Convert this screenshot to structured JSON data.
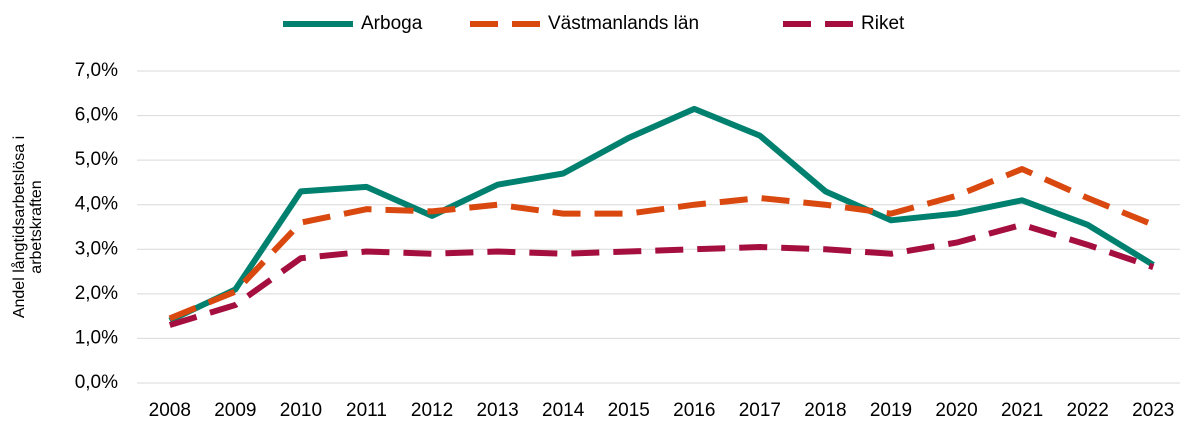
{
  "chart_data": {
    "type": "line",
    "ylabel": "Andel långtidsarbetslösa i arbetskraften",
    "categories": [
      "2008",
      "2009",
      "2010",
      "2011",
      "2012",
      "2013",
      "2014",
      "2015",
      "2016",
      "2017",
      "2018",
      "2019",
      "2020",
      "2021",
      "2022",
      "2023"
    ],
    "series": [
      {
        "name": "Arboga",
        "color": "#00806e",
        "dash": "solid",
        "values": [
          1.4,
          2.1,
          4.3,
          4.4,
          3.75,
          4.45,
          4.7,
          5.5,
          6.15,
          5.55,
          4.3,
          3.65,
          3.8,
          4.1,
          3.55,
          2.65
        ]
      },
      {
        "name": "Västmanlands län",
        "color": "#d9480f",
        "dash": "dashed",
        "values": [
          1.45,
          2.05,
          3.6,
          3.9,
          3.85,
          4.0,
          3.8,
          3.8,
          4.0,
          4.15,
          4.0,
          3.8,
          4.2,
          4.8,
          4.15,
          3.55
        ]
      },
      {
        "name": "Riket",
        "color": "#a50f3f",
        "dash": "dashed",
        "values": [
          1.3,
          1.75,
          2.8,
          2.95,
          2.9,
          2.95,
          2.9,
          2.95,
          3.0,
          3.05,
          3.0,
          2.9,
          3.15,
          3.55,
          3.1,
          2.6
        ]
      }
    ],
    "ylim": [
      0,
      7
    ],
    "yticks": [
      {
        "value": 0,
        "label": "0,0%"
      },
      {
        "value": 1,
        "label": "1,0%"
      },
      {
        "value": 2,
        "label": "2,0%"
      },
      {
        "value": 3,
        "label": "3,0%"
      },
      {
        "value": 4,
        "label": "4,0%"
      },
      {
        "value": 5,
        "label": "5,0%"
      },
      {
        "value": 6,
        "label": "6,0%"
      },
      {
        "value": 7,
        "label": "7,0%"
      }
    ],
    "grid": true,
    "legend": "top"
  }
}
